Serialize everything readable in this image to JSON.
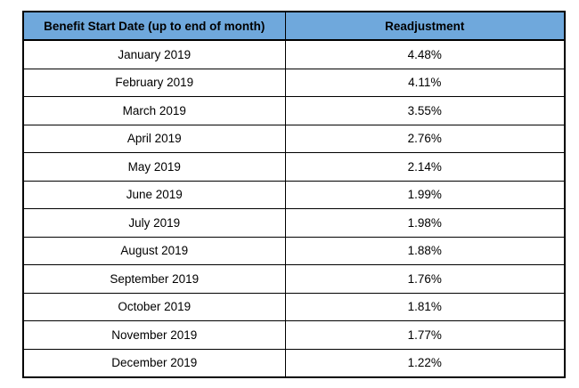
{
  "chart_data": {
    "type": "table",
    "title": "",
    "columns": [
      "Benefit Start Date (up to end of month)",
      "Readjustment"
    ],
    "categories": [
      "January 2019",
      "February 2019",
      "March 2019",
      "April 2019",
      "May 2019",
      "June 2019",
      "July 2019",
      "August 2019",
      "September 2019",
      "October 2019",
      "November 2019",
      "December 2019"
    ],
    "values": [
      4.48,
      4.11,
      3.55,
      2.76,
      2.14,
      1.99,
      1.98,
      1.88,
      1.76,
      1.81,
      1.77,
      1.22
    ],
    "value_format": "percent",
    "display_values": [
      "4.48%",
      "4.11%",
      "3.55%",
      "2.76%",
      "2.14%",
      "1.99%",
      "1.98%",
      "1.88%",
      "1.76%",
      "1.81%",
      "1.77%",
      "1.22%"
    ]
  },
  "colors": {
    "header_bg": "#6FA8DC",
    "border": "#000000",
    "text": "#000000"
  }
}
